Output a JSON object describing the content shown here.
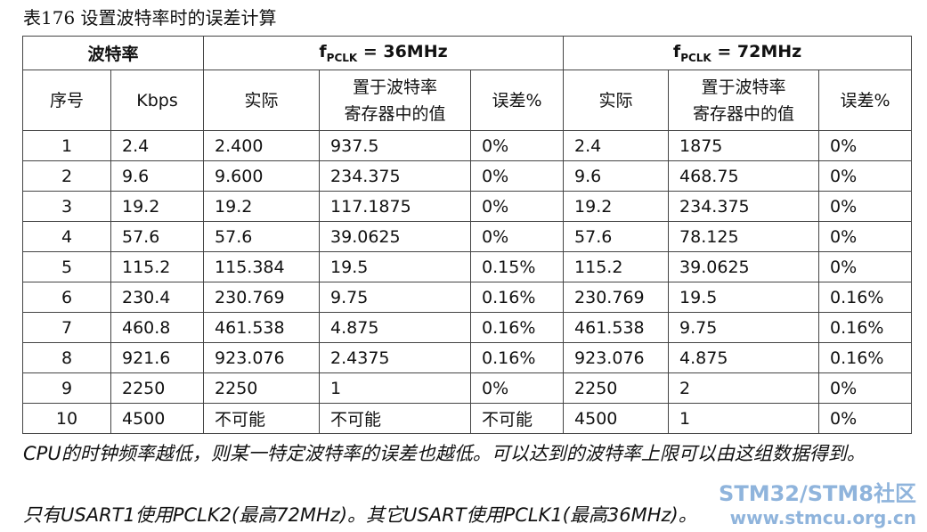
{
  "title": "表176  设置波特率时的误差计算",
  "table": {
    "group_headers": [
      {
        "text": "波特率"
      },
      {
        "f": "f",
        "sub": "PCLK",
        "rest": " = 36MHz"
      },
      {
        "f": "f",
        "sub": "PCLK",
        "rest": " = 72MHz"
      }
    ],
    "columns": [
      "序号",
      "Kbps",
      "实际",
      "置于波特率\n寄存器中的值",
      "误差%",
      "实际",
      "置于波特率\n寄存器中的值",
      "误差%"
    ],
    "rows": [
      [
        "1",
        "2.4",
        "2.400",
        "937.5",
        "0%",
        "2.4",
        "1875",
        "0%"
      ],
      [
        "2",
        "9.6",
        "9.600",
        "234.375",
        "0%",
        "9.6",
        "468.75",
        "0%"
      ],
      [
        "3",
        "19.2",
        "19.2",
        "117.1875",
        "0%",
        "19.2",
        "234.375",
        "0%"
      ],
      [
        "4",
        "57.6",
        "57.6",
        "39.0625",
        "0%",
        "57.6",
        "78.125",
        "0%"
      ],
      [
        "5",
        "115.2",
        "115.384",
        "19.5",
        "0.15%",
        "115.2",
        "39.0625",
        "0%"
      ],
      [
        "6",
        "230.4",
        "230.769",
        "9.75",
        "0.16%",
        "230.769",
        "19.5",
        "0.16%"
      ],
      [
        "7",
        "460.8",
        "461.538",
        "4.875",
        "0.16%",
        "461.538",
        "9.75",
        "0.16%"
      ],
      [
        "8",
        "921.6",
        "923.076",
        "2.4375",
        "0.16%",
        "923.076",
        "4.875",
        "0.16%"
      ],
      [
        "9",
        "2250",
        "2250",
        "1",
        "0%",
        "2250",
        "2",
        "0%"
      ],
      [
        "10",
        "4500",
        "不可能",
        "不可能",
        "不可能",
        "4500",
        "1",
        "0%"
      ]
    ]
  },
  "notes": [
    "CPU的时钟频率越低，则某一特定波特率的误差也越低。可以达到的波特率上限可以由这组数据得到。",
    "只有USART1使用PCLK2(最高72MHz)。其它USART使用PCLK1(最高36MHz)。"
  ],
  "watermark": {
    "line1": "STM32/STM8社区",
    "line2": "www.stmcu.org.cn"
  }
}
